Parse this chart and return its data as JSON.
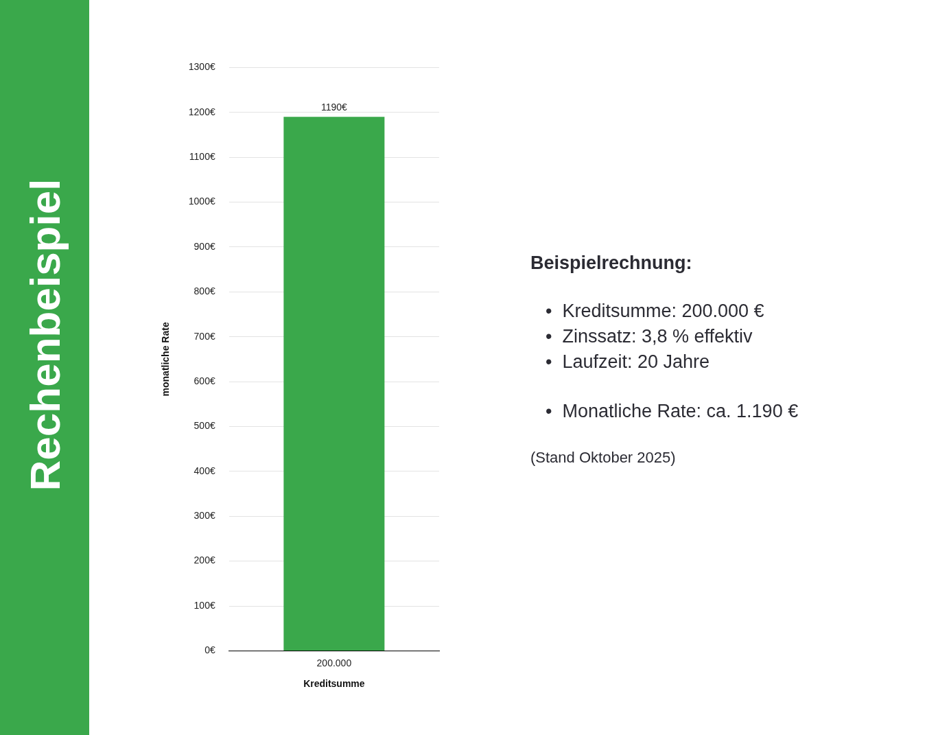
{
  "chart_data": {
    "type": "bar",
    "title": "Rechenbeispiel",
    "xlabel": "Kreditsumme",
    "ylabel": "monatliche Rate",
    "categories": [
      "200.000"
    ],
    "values": [
      1190
    ],
    "value_labels": [
      "1190€"
    ],
    "color": "#3aa84b",
    "ylim": [
      0,
      1300
    ],
    "yticks": [
      {
        "value": 0,
        "label": "0€"
      },
      {
        "value": 100,
        "label": "100€"
      },
      {
        "value": 200,
        "label": "200€"
      },
      {
        "value": 300,
        "label": "300€"
      },
      {
        "value": 400,
        "label": "400€"
      },
      {
        "value": 500,
        "label": "500€"
      },
      {
        "value": 600,
        "label": "600€"
      },
      {
        "value": 700,
        "label": "700€"
      },
      {
        "value": 800,
        "label": "800€"
      },
      {
        "value": 900,
        "label": "900€"
      },
      {
        "value": 1000,
        "label": "1000€"
      },
      {
        "value": 1100,
        "label": "1100€"
      },
      {
        "value": 1200,
        "label": "1200€"
      },
      {
        "value": 1300,
        "label": "1300€"
      }
    ],
    "grid": "y",
    "annotations": [
      "Beispielrechnung:",
      "•  Kreditsumme: 200.000 €",
      "•  Zinssatz: 3,8 % effektiv",
      "•  Laufzeit: 20 Jahre",
      "•  Monatliche Rate: ca. 1.190 €",
      "(Stand Oktober 2025)"
    ]
  }
}
